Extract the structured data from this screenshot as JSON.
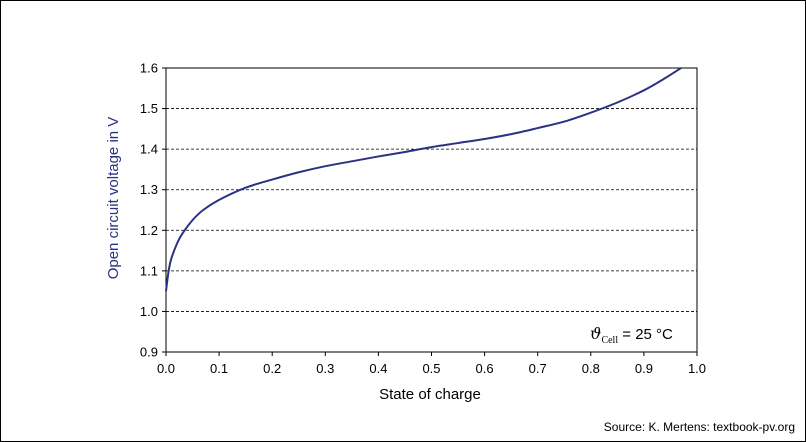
{
  "chart_data": {
    "type": "line",
    "xlabel": "State of charge",
    "ylabel": "Open circuit voltage in V",
    "xlim": [
      0.0,
      1.0
    ],
    "ylim": [
      0.9,
      1.6
    ],
    "x_ticks": [
      "0.0",
      "0.1",
      "0.2",
      "0.3",
      "0.4",
      "0.5",
      "0.6",
      "0.7",
      "0.8",
      "0.9",
      "1.0"
    ],
    "y_ticks": [
      "0.9",
      "1.0",
      "1.1",
      "1.2",
      "1.3",
      "1.4",
      "1.5",
      "1.6"
    ],
    "grid": "horizontal dashed",
    "line_color": "#2b3284",
    "annotation": {
      "symbol": "ϑ",
      "subscript": "Cell",
      "text": " = 25 °C"
    },
    "series": [
      {
        "x": [
          0.0,
          0.005,
          0.01,
          0.02,
          0.03,
          0.05,
          0.07,
          0.1,
          0.15,
          0.2,
          0.25,
          0.3,
          0.35,
          0.4,
          0.45,
          0.5,
          0.55,
          0.6,
          0.65,
          0.7,
          0.75,
          0.8,
          0.85,
          0.9,
          0.94,
          0.97
        ],
        "y": [
          1.05,
          1.1,
          1.13,
          1.165,
          1.19,
          1.225,
          1.25,
          1.275,
          1.305,
          1.325,
          1.343,
          1.358,
          1.37,
          1.382,
          1.393,
          1.405,
          1.415,
          1.425,
          1.437,
          1.452,
          1.468,
          1.49,
          1.515,
          1.545,
          1.575,
          1.6
        ]
      }
    ]
  },
  "source": "Source: K. Mertens: textbook-pv.org"
}
